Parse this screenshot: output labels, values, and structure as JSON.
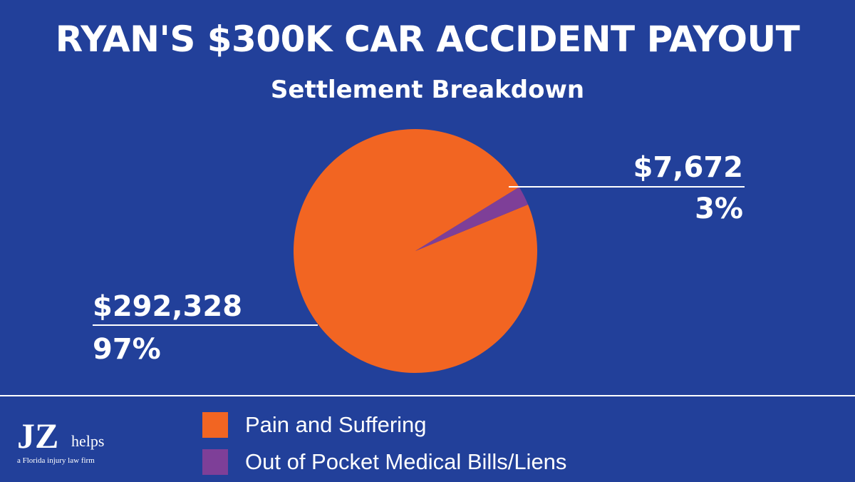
{
  "chart_data": {
    "type": "pie",
    "title": "RYAN'S $300K CAR ACCIDENT PAYOUT",
    "subtitle": "Settlement Breakdown",
    "slices": [
      {
        "name": "Pain and Suffering",
        "value": 292328,
        "value_label": "$292,328",
        "percent_label": "97%",
        "color": "#f26522"
      },
      {
        "name": "Out of Pocket Medical Bills/Liens",
        "value": 7672,
        "value_label": "$7,672",
        "percent_label": "3%",
        "color": "#7e3f98"
      }
    ],
    "legend_position": "bottom"
  },
  "logo": {
    "mark": "JZ",
    "word": "helps",
    "tagline": "a Florida injury law firm"
  },
  "colors": {
    "background": "#22409a",
    "text": "#ffffff"
  }
}
